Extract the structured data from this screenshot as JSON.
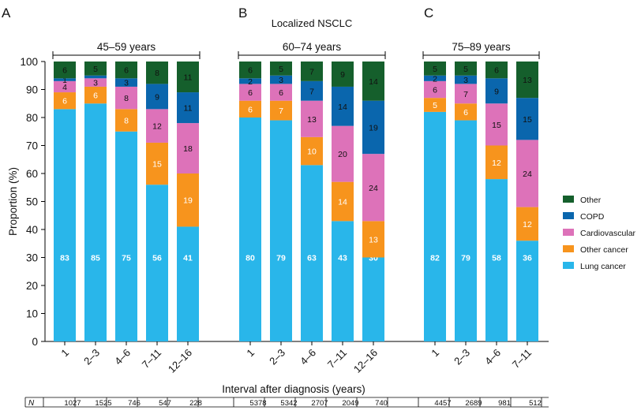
{
  "figure": {
    "suptitle": "Localized NSCLC",
    "ylabel": "Proportion (%)",
    "xlabel": "Interval after diagnosis (years)",
    "n_label": "N",
    "yticks": [
      "0",
      "10",
      "20",
      "30",
      "40",
      "50",
      "60",
      "70",
      "80",
      "90",
      "100"
    ],
    "legend": [
      {
        "name": "Other",
        "color": "#155f2c"
      },
      {
        "name": "COPD",
        "color": "#0a66ad"
      },
      {
        "name": "Cardiovascular",
        "color": "#dd72b9"
      },
      {
        "name": "Other cancer",
        "color": "#f7941d"
      },
      {
        "name": "Lung cancer",
        "color": "#29b6ea"
      }
    ]
  },
  "chart_data": [
    {
      "type": "bar",
      "stacked": true,
      "panel": "A",
      "title": "45–59 years",
      "ylim": [
        0,
        100
      ],
      "categories": [
        "1",
        "2–3",
        "4–6",
        "7–11",
        "12–16"
      ],
      "n": [
        "1027",
        "1525",
        "746",
        "547",
        "228"
      ],
      "series": [
        {
          "name": "Lung cancer",
          "values": [
            83,
            85,
            75,
            56,
            41
          ],
          "labels": [
            "83",
            "85",
            "75",
            "56",
            "41"
          ]
        },
        {
          "name": "Other cancer",
          "values": [
            6,
            6,
            8,
            15,
            19
          ],
          "labels": [
            "6",
            "6",
            "8",
            "15",
            "19"
          ]
        },
        {
          "name": "Cardiovascular",
          "values": [
            4,
            3,
            8,
            12,
            18
          ],
          "labels": [
            "4",
            "3",
            "8",
            "12",
            "18"
          ]
        },
        {
          "name": "COPD",
          "values": [
            1,
            1,
            3,
            9,
            11
          ],
          "labels": [
            "1",
            "",
            "3",
            "9",
            "11"
          ]
        },
        {
          "name": "Other",
          "values": [
            6,
            5,
            6,
            8,
            11
          ],
          "labels": [
            "6",
            "5",
            "6",
            "8",
            "11"
          ]
        }
      ]
    },
    {
      "type": "bar",
      "stacked": true,
      "panel": "B",
      "title": "60–74 years",
      "ylim": [
        0,
        100
      ],
      "categories": [
        "1",
        "2–3",
        "4–6",
        "7–11",
        "12–16"
      ],
      "n": [
        "5378",
        "5342",
        "2707",
        "2049",
        "740"
      ],
      "series": [
        {
          "name": "Lung cancer",
          "values": [
            80,
            79,
            63,
            43,
            30
          ],
          "labels": [
            "80",
            "79",
            "63",
            "43",
            "30"
          ]
        },
        {
          "name": "Other cancer",
          "values": [
            6,
            7,
            10,
            14,
            13
          ],
          "labels": [
            "6",
            "7",
            "10",
            "14",
            "13"
          ]
        },
        {
          "name": "Cardiovascular",
          "values": [
            6,
            6,
            13,
            20,
            24
          ],
          "labels": [
            "6",
            "6",
            "13",
            "20",
            "24"
          ]
        },
        {
          "name": "COPD",
          "values": [
            2,
            3,
            7,
            14,
            19
          ],
          "labels": [
            "2",
            "3",
            "7",
            "14",
            "19"
          ]
        },
        {
          "name": "Other",
          "values": [
            6,
            5,
            7,
            9,
            14
          ],
          "labels": [
            "6",
            "5",
            "7",
            "9",
            "14"
          ]
        }
      ]
    },
    {
      "type": "bar",
      "stacked": true,
      "panel": "C",
      "title": "75–89 years",
      "ylim": [
        0,
        100
      ],
      "categories": [
        "1",
        "2–3",
        "4–6",
        "7–11"
      ],
      "n": [
        "4457",
        "2689",
        "981",
        "512"
      ],
      "series": [
        {
          "name": "Lung cancer",
          "values": [
            82,
            79,
            58,
            36
          ],
          "labels": [
            "82",
            "79",
            "58",
            "36"
          ]
        },
        {
          "name": "Other cancer",
          "values": [
            5,
            6,
            12,
            12
          ],
          "labels": [
            "5",
            "6",
            "12",
            "12"
          ]
        },
        {
          "name": "Cardiovascular",
          "values": [
            6,
            7,
            15,
            24
          ],
          "labels": [
            "6",
            "7",
            "15",
            "24"
          ]
        },
        {
          "name": "COPD",
          "values": [
            2,
            3,
            9,
            15
          ],
          "labels": [
            "2",
            "3",
            "9",
            "15"
          ]
        },
        {
          "name": "Other",
          "values": [
            5,
            5,
            6,
            13
          ],
          "labels": [
            "5",
            "5",
            "6",
            "13"
          ]
        }
      ]
    }
  ]
}
